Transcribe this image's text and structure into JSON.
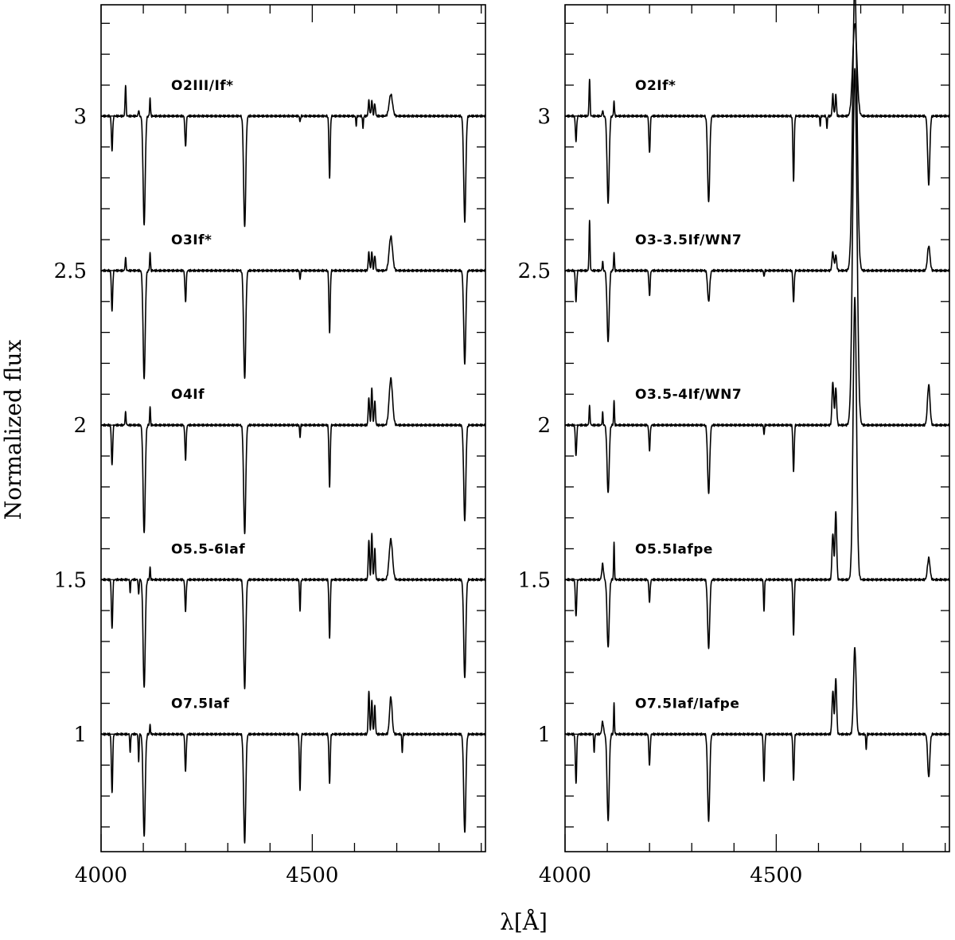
{
  "figure": {
    "ylabel": "Normalized flux",
    "xlabel": "λ[Å]"
  },
  "chart_data": [
    {
      "type": "line",
      "panel": "left",
      "xlabel": "λ[Å]",
      "ylabel": "Normalized flux",
      "xlim": [
        4000,
        4910
      ],
      "ylim": [
        0.62,
        3.36
      ],
      "x_ticks": [
        4000,
        4500
      ],
      "y_ticks": [
        1,
        1.5,
        2,
        2.5,
        3
      ],
      "y_tick_labels": [
        "1",
        "1.5",
        "2",
        "2.5",
        "3"
      ],
      "grid": false,
      "series": [
        {
          "name": "O2III/If*",
          "offset": 3.0,
          "scale": 1.0,
          "features": [
            {
              "w": 4026,
              "d": -0.11,
              "s": 1.5
            },
            {
              "w": 4058,
              "d": 0.1,
              "s": 1.2
            },
            {
              "w": 4089,
              "d": 0.02,
              "s": 1
            },
            {
              "w": 4102,
              "d": -0.35,
              "s": 2.5
            },
            {
              "w": 4116,
              "d": 0.06,
              "s": 1
            },
            {
              "w": 4200,
              "d": -0.1,
              "s": 1.5
            },
            {
              "w": 4340,
              "d": -0.36,
              "s": 2.5
            },
            {
              "w": 4471,
              "d": -0.02,
              "s": 1
            },
            {
              "w": 4541,
              "d": -0.2,
              "s": 1.5
            },
            {
              "w": 4604,
              "d": -0.03,
              "s": 1
            },
            {
              "w": 4620,
              "d": -0.04,
              "s": 1
            },
            {
              "w": 4634,
              "d": 0.05,
              "s": 1.5
            },
            {
              "w": 4641,
              "d": 0.05,
              "s": 1.5
            },
            {
              "w": 4648,
              "d": 0.04,
              "s": 1.5
            },
            {
              "w": 4686,
              "d": 0.07,
              "s": 4
            },
            {
              "w": 4861,
              "d": -0.34,
              "s": 2.5
            }
          ]
        },
        {
          "name": "O3If*",
          "offset": 2.5,
          "scale": 1.0,
          "features": [
            {
              "w": 4026,
              "d": -0.13,
              "s": 1.5
            },
            {
              "w": 4058,
              "d": 0.04,
              "s": 1.2
            },
            {
              "w": 4102,
              "d": -0.35,
              "s": 2.5
            },
            {
              "w": 4116,
              "d": 0.06,
              "s": 1
            },
            {
              "w": 4200,
              "d": -0.1,
              "s": 1.5
            },
            {
              "w": 4340,
              "d": -0.35,
              "s": 2.5
            },
            {
              "w": 4471,
              "d": -0.03,
              "s": 1
            },
            {
              "w": 4541,
              "d": -0.2,
              "s": 1.5
            },
            {
              "w": 4634,
              "d": 0.06,
              "s": 1.5
            },
            {
              "w": 4641,
              "d": 0.06,
              "s": 1.5
            },
            {
              "w": 4648,
              "d": 0.05,
              "s": 1.5
            },
            {
              "w": 4686,
              "d": 0.11,
              "s": 4
            },
            {
              "w": 4861,
              "d": -0.3,
              "s": 2.5
            }
          ]
        },
        {
          "name": "O4If",
          "offset": 2.0,
          "scale": 1.0,
          "features": [
            {
              "w": 4026,
              "d": -0.13,
              "s": 1.5
            },
            {
              "w": 4058,
              "d": 0.04,
              "s": 1.2
            },
            {
              "w": 4102,
              "d": -0.35,
              "s": 2.5
            },
            {
              "w": 4116,
              "d": 0.06,
              "s": 1
            },
            {
              "w": 4200,
              "d": -0.11,
              "s": 1.5
            },
            {
              "w": 4340,
              "d": -0.35,
              "s": 2.5
            },
            {
              "w": 4471,
              "d": -0.04,
              "s": 1
            },
            {
              "w": 4541,
              "d": -0.2,
              "s": 1.5
            },
            {
              "w": 4634,
              "d": 0.09,
              "s": 1.5
            },
            {
              "w": 4641,
              "d": 0.12,
              "s": 1.5
            },
            {
              "w": 4648,
              "d": 0.08,
              "s": 1.5
            },
            {
              "w": 4686,
              "d": 0.15,
              "s": 4
            },
            {
              "w": 4861,
              "d": -0.31,
              "s": 2.5
            }
          ]
        },
        {
          "name": "O5.5-6Iaf",
          "offset": 1.5,
          "scale": 1.0,
          "features": [
            {
              "w": 4026,
              "d": -0.16,
              "s": 1.5
            },
            {
              "w": 4069,
              "d": -0.04,
              "s": 1
            },
            {
              "w": 4089,
              "d": -0.05,
              "s": 1
            },
            {
              "w": 4102,
              "d": -0.35,
              "s": 2.5
            },
            {
              "w": 4116,
              "d": 0.04,
              "s": 1
            },
            {
              "w": 4200,
              "d": -0.1,
              "s": 1.5
            },
            {
              "w": 4340,
              "d": -0.35,
              "s": 2.5
            },
            {
              "w": 4471,
              "d": -0.1,
              "s": 1.2
            },
            {
              "w": 4541,
              "d": -0.19,
              "s": 1.5
            },
            {
              "w": 4634,
              "d": 0.13,
              "s": 1.5
            },
            {
              "w": 4641,
              "d": 0.15,
              "s": 1.5
            },
            {
              "w": 4648,
              "d": 0.1,
              "s": 1.5
            },
            {
              "w": 4686,
              "d": 0.13,
              "s": 4
            },
            {
              "w": 4861,
              "d": -0.32,
              "s": 2.5
            }
          ]
        },
        {
          "name": "O7.5Iaf",
          "offset": 1.0,
          "scale": 1.0,
          "features": [
            {
              "w": 4026,
              "d": -0.19,
              "s": 1.5
            },
            {
              "w": 4069,
              "d": -0.06,
              "s": 1
            },
            {
              "w": 4089,
              "d": -0.09,
              "s": 1
            },
            {
              "w": 4102,
              "d": -0.33,
              "s": 2.5
            },
            {
              "w": 4116,
              "d": 0.03,
              "s": 1
            },
            {
              "w": 4200,
              "d": -0.12,
              "s": 1.5
            },
            {
              "w": 4340,
              "d": -0.35,
              "s": 2.5
            },
            {
              "w": 4471,
              "d": -0.18,
              "s": 1.5
            },
            {
              "w": 4541,
              "d": -0.16,
              "s": 1.5
            },
            {
              "w": 4634,
              "d": 0.14,
              "s": 1.5
            },
            {
              "w": 4641,
              "d": 0.11,
              "s": 1.5
            },
            {
              "w": 4648,
              "d": 0.09,
              "s": 1.5
            },
            {
              "w": 4686,
              "d": 0.12,
              "s": 3
            },
            {
              "w": 4713,
              "d": -0.06,
              "s": 1
            },
            {
              "w": 4861,
              "d": -0.32,
              "s": 2.5
            }
          ]
        }
      ]
    },
    {
      "type": "line",
      "panel": "right",
      "xlabel": "λ[Å]",
      "ylabel": "Normalized flux",
      "xlim": [
        4000,
        4910
      ],
      "ylim": [
        0.62,
        3.36
      ],
      "x_ticks": [
        4000,
        4500
      ],
      "y_ticks": [
        1,
        1.5,
        2,
        2.5,
        3
      ],
      "y_tick_labels": [
        "1",
        "1.5",
        "2",
        "2.5",
        "3"
      ],
      "grid": false,
      "series": [
        {
          "name": "O2If*",
          "offset": 3.0,
          "scale": 1.0,
          "features": [
            {
              "w": 4026,
              "d": -0.08,
              "s": 1.5
            },
            {
              "w": 4058,
              "d": 0.12,
              "s": 1.2
            },
            {
              "w": 4089,
              "d": 0.02,
              "s": 1
            },
            {
              "w": 4102,
              "d": -0.28,
              "s": 2.5
            },
            {
              "w": 4116,
              "d": 0.05,
              "s": 1
            },
            {
              "w": 4200,
              "d": -0.12,
              "s": 1.5
            },
            {
              "w": 4340,
              "d": -0.28,
              "s": 2.5
            },
            {
              "w": 4541,
              "d": -0.21,
              "s": 1.5
            },
            {
              "w": 4604,
              "d": -0.03,
              "s": 1
            },
            {
              "w": 4620,
              "d": -0.04,
              "s": 1
            },
            {
              "w": 4634,
              "d": 0.07,
              "s": 1.5
            },
            {
              "w": 4641,
              "d": 0.07,
              "s": 1.5
            },
            {
              "w": 4686,
              "d": 0.3,
              "s": 5
            },
            {
              "w": 4861,
              "d": -0.22,
              "s": 2.5
            }
          ]
        },
        {
          "name": "O3-3.5If/WN7",
          "offset": 2.5,
          "scale": 1.0,
          "features": [
            {
              "w": 4026,
              "d": -0.1,
              "s": 1.5
            },
            {
              "w": 4058,
              "d": 0.16,
              "s": 1.2
            },
            {
              "w": 4089,
              "d": 0.03,
              "s": 1
            },
            {
              "w": 4102,
              "d": -0.23,
              "s": 2.5
            },
            {
              "w": 4116,
              "d": 0.06,
              "s": 1
            },
            {
              "w": 4200,
              "d": -0.08,
              "s": 1.5
            },
            {
              "w": 4340,
              "d": -0.1,
              "s": 2.5
            },
            {
              "w": 4471,
              "d": -0.02,
              "s": 1
            },
            {
              "w": 4541,
              "d": -0.1,
              "s": 1.5
            },
            {
              "w": 4634,
              "d": 0.06,
              "s": 2
            },
            {
              "w": 4641,
              "d": 0.05,
              "s": 2
            },
            {
              "w": 4686,
              "d": 0.93,
              "s": 5
            },
            {
              "w": 4861,
              "d": 0.08,
              "s": 3
            }
          ]
        },
        {
          "name": "O3.5-4If/WN7",
          "offset": 2.0,
          "scale": 1.0,
          "features": [
            {
              "w": 4026,
              "d": -0.1,
              "s": 1.5
            },
            {
              "w": 4058,
              "d": 0.06,
              "s": 1.2
            },
            {
              "w": 4089,
              "d": 0.04,
              "s": 1
            },
            {
              "w": 4102,
              "d": -0.22,
              "s": 2.5
            },
            {
              "w": 4116,
              "d": 0.08,
              "s": 1
            },
            {
              "w": 4200,
              "d": -0.08,
              "s": 1.5
            },
            {
              "w": 4340,
              "d": -0.22,
              "s": 2.5
            },
            {
              "w": 4471,
              "d": -0.03,
              "s": 1
            },
            {
              "w": 4541,
              "d": -0.15,
              "s": 1.5
            },
            {
              "w": 4634,
              "d": 0.14,
              "s": 2
            },
            {
              "w": 4641,
              "d": 0.12,
              "s": 2
            },
            {
              "w": 4686,
              "d": 1.15,
              "s": 5
            },
            {
              "w": 4861,
              "d": 0.13,
              "s": 3
            }
          ]
        },
        {
          "name": "O5.5Iafpe",
          "offset": 1.5,
          "scale": 1.0,
          "features": [
            {
              "w": 4026,
              "d": -0.12,
              "s": 1.5
            },
            {
              "w": 4089,
              "d": 0.05,
              "s": 2
            },
            {
              "w": 4102,
              "d": -0.22,
              "s": 2.5
            },
            {
              "w": 4116,
              "d": 0.12,
              "s": 1
            },
            {
              "w": 4200,
              "d": -0.07,
              "s": 1.5
            },
            {
              "w": 4340,
              "d": -0.22,
              "s": 2.5
            },
            {
              "w": 4471,
              "d": -0.1,
              "s": 1.2
            },
            {
              "w": 4541,
              "d": -0.18,
              "s": 1.5
            },
            {
              "w": 4634,
              "d": 0.15,
              "s": 2
            },
            {
              "w": 4641,
              "d": 0.22,
              "s": 2
            },
            {
              "w": 4686,
              "d": 0.91,
              "s": 4
            },
            {
              "w": 4861,
              "d": 0.07,
              "s": 3
            }
          ]
        },
        {
          "name": "O7.5Iaf/Iafpe",
          "offset": 1.0,
          "scale": 1.0,
          "features": [
            {
              "w": 4026,
              "d": -0.16,
              "s": 1.5
            },
            {
              "w": 4069,
              "d": -0.06,
              "s": 1
            },
            {
              "w": 4089,
              "d": 0.04,
              "s": 2
            },
            {
              "w": 4102,
              "d": -0.28,
              "s": 2.5
            },
            {
              "w": 4116,
              "d": 0.1,
              "s": 1
            },
            {
              "w": 4200,
              "d": -0.1,
              "s": 1.5
            },
            {
              "w": 4340,
              "d": -0.28,
              "s": 2.5
            },
            {
              "w": 4471,
              "d": -0.15,
              "s": 1.5
            },
            {
              "w": 4541,
              "d": -0.15,
              "s": 1.5
            },
            {
              "w": 4634,
              "d": 0.14,
              "s": 2
            },
            {
              "w": 4641,
              "d": 0.18,
              "s": 2
            },
            {
              "w": 4686,
              "d": 0.28,
              "s": 3
            },
            {
              "w": 4713,
              "d": -0.05,
              "s": 1
            },
            {
              "w": 4861,
              "d": -0.14,
              "s": 2.5
            }
          ]
        }
      ]
    }
  ]
}
